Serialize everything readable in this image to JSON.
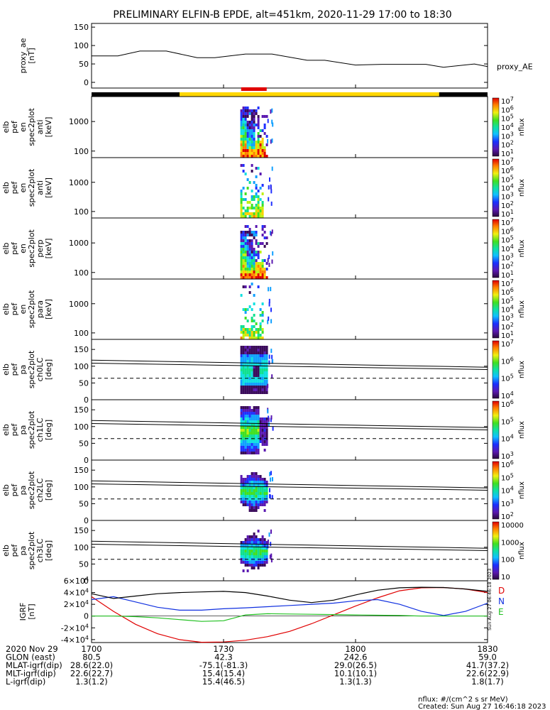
{
  "title": "PRELIMINARY ELFIN-B EPDE, alt=451km, 2020-11-29 17:00 to 18:30",
  "footer": {
    "units": "nflux: #/(cm^2 s sr MeV)",
    "created": "Created: Sun Aug 27 16:46:18 2023"
  },
  "side_stamp": "Sun Aug 27 06:46:18 2023",
  "time_axis": {
    "tick_labels": [
      "1700",
      "1730",
      "1800",
      "1830"
    ],
    "tick_minutes": [
      0,
      30,
      60,
      90
    ],
    "range_minutes": [
      0,
      90
    ]
  },
  "ephemeris": [
    {
      "label": "2020 Nov 29",
      "values": [
        "1700",
        "1730",
        "1800",
        "1830"
      ]
    },
    {
      "label": "GLON (east)",
      "values": [
        "80.5",
        "42.3",
        "242.6",
        "59.0"
      ]
    },
    {
      "label": "MLAT-igrf(dip)",
      "values": [
        "28.6(22.0)",
        "-75.1(-81.3)",
        "29.0(26.5)",
        "41.7(37.2)"
      ]
    },
    {
      "label": "MLT-igrf(dip)",
      "values": [
        "22.6(22.7)",
        "15.4(15.4)",
        "10.1(10.1)",
        "22.6(22.9)"
      ]
    },
    {
      "label": "L-igrf(dip)",
      "values": [
        "1.3(1.2)",
        "15.4(46.5)",
        "1.3(1.3)",
        "1.8(1.7)"
      ]
    }
  ],
  "colors": {
    "black": "#000000",
    "orbit_bar_yellow": "#ffd700",
    "science_zone_red": "#e00000",
    "grf_D": "#e00000",
    "grf_N": "#1030e0",
    "grf_E": "#20c020"
  },
  "chart_data": [
    {
      "type": "line",
      "panel": "proxy_ae",
      "ylabel": [
        "proxy_ae",
        "[nT]"
      ],
      "legend": "proxy_AE",
      "ylim": [
        0,
        160
      ],
      "yticks": [
        "0",
        "50",
        "100",
        "150"
      ],
      "x_minutes": [
        0,
        6,
        11,
        17,
        24,
        28,
        35,
        41,
        49,
        53,
        60,
        66,
        76,
        80,
        87,
        90
      ],
      "values": [
        72,
        72,
        85,
        85,
        67,
        67,
        77,
        77,
        60,
        60,
        47,
        49,
        49,
        41,
        50,
        43
      ]
    },
    {
      "type": "bar",
      "panel": "orbit_bar",
      "segments": [
        {
          "start_min": 0,
          "end_min": 20,
          "color": "black"
        },
        {
          "start_min": 20,
          "end_min": 79,
          "color": "yellow"
        },
        {
          "start_min": 79,
          "end_min": 90,
          "color": "black"
        }
      ],
      "science_zone": {
        "start_min": 34,
        "end_min": 39.8
      }
    },
    {
      "type": "heatmap",
      "panel": "spec_en_anti",
      "ylabel": [
        "elb",
        "pef",
        "en",
        "spec2plot",
        "anti",
        "[keV]"
      ],
      "yscale": "log",
      "ylim": [
        60,
        7000
      ],
      "yticks": [
        "100",
        "1000"
      ],
      "zlabel": "nflux",
      "colorbar_ticks": [
        "10^1",
        "10^2",
        "10^3",
        "10^4",
        "10^5",
        "10^6",
        "10^7"
      ],
      "burst_minutes": [
        33.8,
        39.8
      ],
      "pattern": "full",
      "seed": 11
    },
    {
      "type": "heatmap",
      "panel": "spec_en_anti_2",
      "ylabel": [
        "elb",
        "pef",
        "en",
        "spec2plot",
        "anti",
        "[keV]"
      ],
      "yscale": "log",
      "ylim": [
        60,
        7000
      ],
      "yticks": [
        "100",
        "1000"
      ],
      "zlabel": "nflux",
      "colorbar_ticks": [
        "10^1",
        "10^2",
        "10^3",
        "10^4",
        "10^5",
        "10^6",
        "10^7"
      ],
      "burst_minutes": [
        33.8,
        39.8
      ],
      "pattern": "sparse",
      "seed": 23
    },
    {
      "type": "heatmap",
      "panel": "spec_en_perp",
      "ylabel": [
        "elb",
        "pef",
        "en",
        "spec2plot",
        "perp",
        "[keV]"
      ],
      "yscale": "log",
      "ylim": [
        60,
        7000
      ],
      "yticks": [
        "100",
        "1000"
      ],
      "zlabel": "nflux",
      "colorbar_ticks": [
        "10^1",
        "10^2",
        "10^3",
        "10^4",
        "10^5",
        "10^6",
        "10^7"
      ],
      "burst_minutes": [
        33.8,
        39.8
      ],
      "pattern": "full",
      "seed": 37
    },
    {
      "type": "heatmap",
      "panel": "spec_en_para",
      "ylabel": [
        "elb",
        "pef",
        "en",
        "spec2plot",
        "para",
        "[keV]"
      ],
      "yscale": "log",
      "ylim": [
        60,
        7000
      ],
      "yticks": [
        "100",
        "1000"
      ],
      "zlabel": "nflux",
      "colorbar_ticks": [
        "10^1",
        "10^2",
        "10^3",
        "10^4",
        "10^5",
        "10^6",
        "10^7"
      ],
      "burst_minutes": [
        33.8,
        39.8
      ],
      "pattern": "sparse",
      "seed": 41
    },
    {
      "type": "heatmap",
      "panel": "pa_ch0",
      "ylabel": [
        "elb",
        "pef",
        "pa",
        "spec2plot",
        "ch0LC",
        "[deg]"
      ],
      "ylim": [
        0,
        180
      ],
      "yticks": [
        "0",
        "50",
        "100",
        "150"
      ],
      "zlabel": "nflux",
      "colorbar_ticks": [
        "10^4",
        "10^5",
        "10^6",
        "10^7"
      ],
      "burst_minutes": [
        33.8,
        39.8
      ],
      "pattern": "pa_dark",
      "seed": 53,
      "lc_lines": {
        "upper": [
          118,
          97
        ],
        "lower": [
          109,
          90
        ],
        "dashed": 64
      }
    },
    {
      "type": "heatmap",
      "panel": "pa_ch1",
      "ylabel": [
        "elb",
        "pef",
        "pa",
        "spec2plot",
        "ch1LC",
        "[deg]"
      ],
      "ylim": [
        0,
        180
      ],
      "yticks": [
        "0",
        "50",
        "100",
        "150"
      ],
      "zlabel": "nflux",
      "colorbar_ticks": [
        "10^3",
        "10^4",
        "10^5",
        "10^6"
      ],
      "burst_minutes": [
        33.8,
        39.8
      ],
      "pattern": "pa_mid",
      "seed": 61,
      "lc_lines": {
        "upper": [
          118,
          97
        ],
        "lower": [
          109,
          90
        ],
        "dashed": 64
      }
    },
    {
      "type": "heatmap",
      "panel": "pa_ch2",
      "ylabel": [
        "elb",
        "pef",
        "pa",
        "spec2plot",
        "ch2LC",
        "[deg]"
      ],
      "ylim": [
        0,
        180
      ],
      "yticks": [
        "0",
        "50",
        "100",
        "150"
      ],
      "zlabel": "nflux",
      "colorbar_ticks": [
        "10^2",
        "10^3",
        "10^4",
        "10^5",
        "10^6"
      ],
      "burst_minutes": [
        33.8,
        39.8
      ],
      "pattern": "pa_blob",
      "seed": 71,
      "lc_lines": {
        "upper": [
          118,
          97
        ],
        "lower": [
          109,
          90
        ],
        "dashed": 64
      }
    },
    {
      "type": "heatmap",
      "panel": "pa_ch3",
      "ylabel": [
        "elb",
        "pef",
        "pa",
        "spec2plot",
        "ch3LC",
        "[deg]"
      ],
      "ylim": [
        0,
        180
      ],
      "yticks": [
        "0",
        "50",
        "100",
        "150"
      ],
      "zlabel": "nflux",
      "colorbar_ticks": [
        "10",
        "100",
        "1000",
        "10000"
      ],
      "burst_minutes": [
        33.8,
        39.8
      ],
      "pattern": "pa_blob2",
      "seed": 83,
      "lc_lines": {
        "upper": [
          118,
          97
        ],
        "lower": [
          109,
          90
        ],
        "dashed": 64
      }
    },
    {
      "type": "line",
      "panel": "igrf",
      "ylabel": [
        "IGRF",
        "[nT]"
      ],
      "ylim": [
        -45000,
        60000
      ],
      "yticks": [
        "6x10^4",
        "4x10^4",
        "2x10^4",
        "0",
        "-2x10^4",
        "-4x10^4"
      ],
      "ytick_values": [
        60000,
        40000,
        20000,
        0,
        -20000,
        -40000
      ],
      "x_minutes": [
        0,
        5,
        10,
        15,
        20,
        25,
        30,
        35,
        40,
        45,
        50,
        55,
        60,
        65,
        70,
        75,
        80,
        85,
        90
      ],
      "series": [
        {
          "name": "D",
          "color": "grf_D",
          "values": [
            33000,
            8000,
            -14000,
            -30000,
            -40000,
            -44500,
            -44000,
            -41000,
            -35000,
            -26000,
            -13000,
            2000,
            17000,
            31000,
            43000,
            48000,
            48500,
            46000,
            40000
          ]
        },
        {
          "name": "N",
          "color": "grf_N",
          "values": [
            28000,
            33000,
            24000,
            15000,
            10000,
            10000,
            12500,
            14000,
            16000,
            18000,
            20000,
            22000,
            26000,
            28000,
            20000,
            8000,
            1000,
            8000,
            22000
          ]
        },
        {
          "name": "E",
          "color": "grf_E",
          "values": [
            0,
            0,
            -1000,
            -3000,
            -6000,
            -9000,
            -8000,
            2000,
            4000,
            3500,
            3000,
            2500,
            2000,
            1500,
            1000,
            0,
            0,
            0,
            0
          ]
        },
        {
          "name": "",
          "color": "black",
          "values": [
            38000,
            30000,
            34000,
            38000,
            40000,
            41000,
            42000,
            40000,
            34000,
            27000,
            23000,
            27000,
            36000,
            44000,
            48000,
            49000,
            48500,
            46000,
            42000
          ]
        }
      ],
      "legend": [
        "D",
        "N",
        "E"
      ]
    }
  ]
}
